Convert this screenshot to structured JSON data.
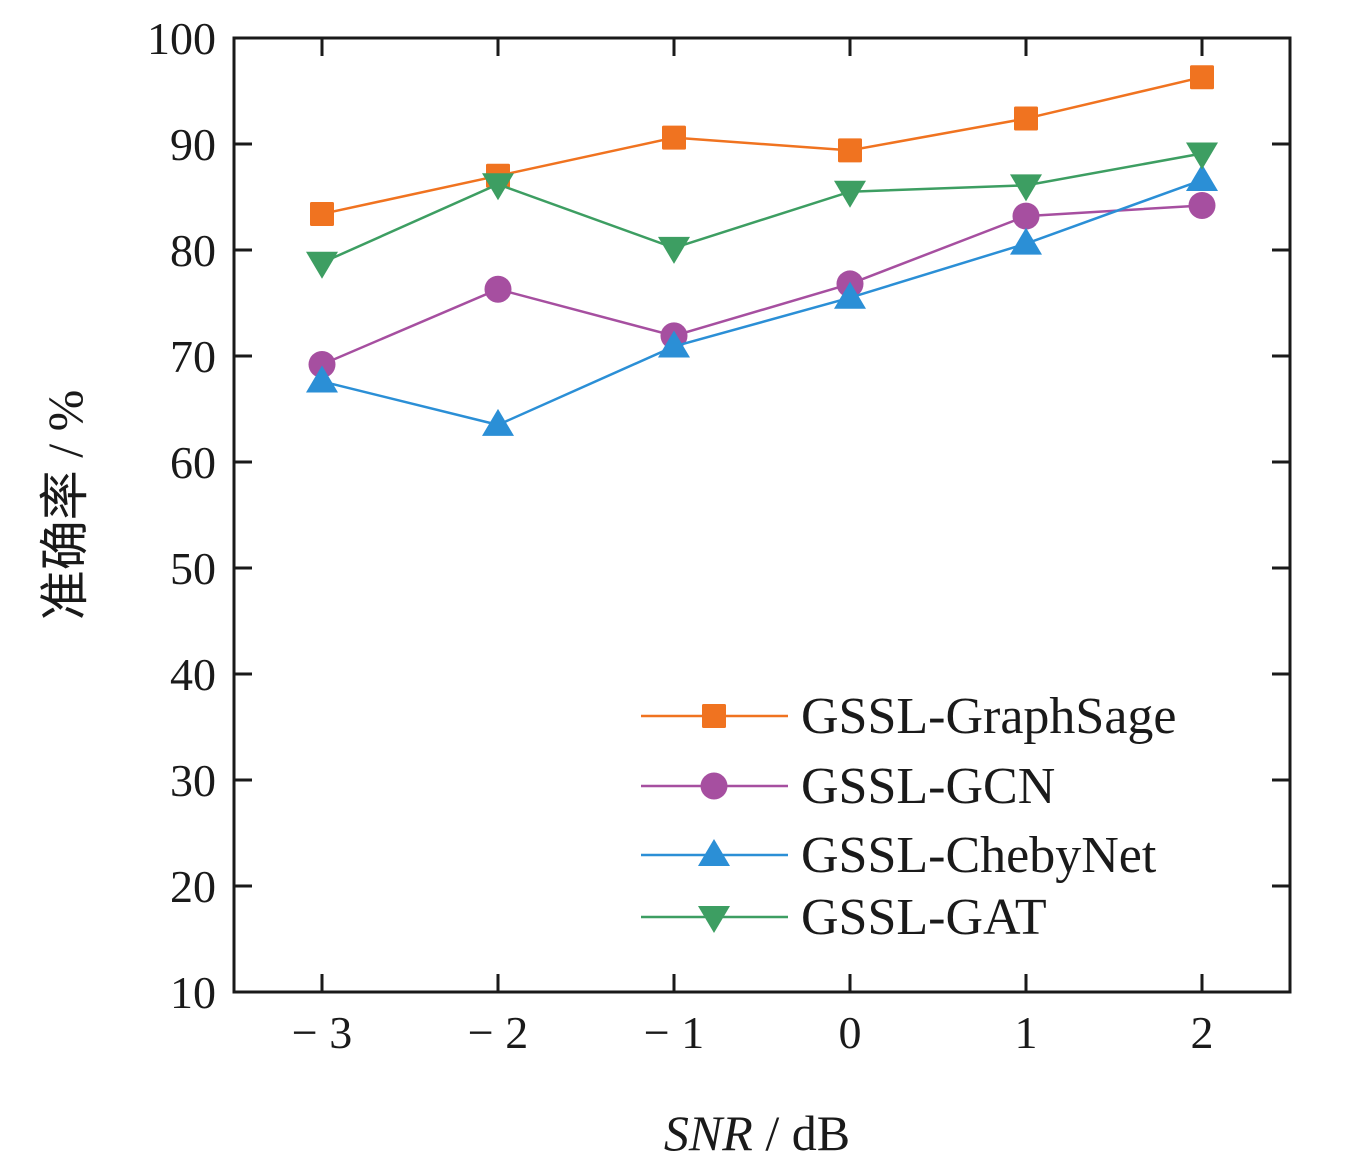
{
  "chart_data": {
    "type": "line",
    "title": "",
    "xlabel_italic": "SNR",
    "xlabel_rest": " / dB",
    "ylabel": "准确率  / %",
    "x": [
      -3,
      -2,
      -1,
      0,
      1,
      2
    ],
    "x_tick_labels": [
      "− 3",
      "− 2",
      "− 1",
      "0",
      "1",
      "2"
    ],
    "xlim": [
      -3.5,
      2.5
    ],
    "ylim": [
      10,
      100
    ],
    "y_ticks": [
      10,
      20,
      30,
      40,
      50,
      60,
      70,
      80,
      90,
      100
    ],
    "y_tick_labels": [
      "10",
      "20",
      "30",
      "40",
      "50",
      "60",
      "70",
      "80",
      "90",
      "100"
    ],
    "grid": false,
    "legend_position": "bottom-right",
    "series": [
      {
        "name": "GSSL-GraphSage",
        "marker": "square",
        "color": "#f07320",
        "values": [
          83.4,
          87.0,
          90.6,
          89.4,
          92.4,
          96.3
        ]
      },
      {
        "name": "GSSL-GCN",
        "marker": "circle",
        "color": "#a64fa0",
        "values": [
          69.2,
          76.3,
          71.9,
          76.8,
          83.2,
          84.2
        ]
      },
      {
        "name": "GSSL-ChebyNet",
        "marker": "triangle-up",
        "color": "#2b8fd6",
        "values": [
          67.6,
          63.5,
          70.9,
          75.5,
          80.6,
          86.6
        ]
      },
      {
        "name": "GSSL-GAT",
        "marker": "triangle-down",
        "color": "#3d9e62",
        "values": [
          78.8,
          86.2,
          80.2,
          85.5,
          86.1,
          89.1
        ]
      }
    ]
  }
}
